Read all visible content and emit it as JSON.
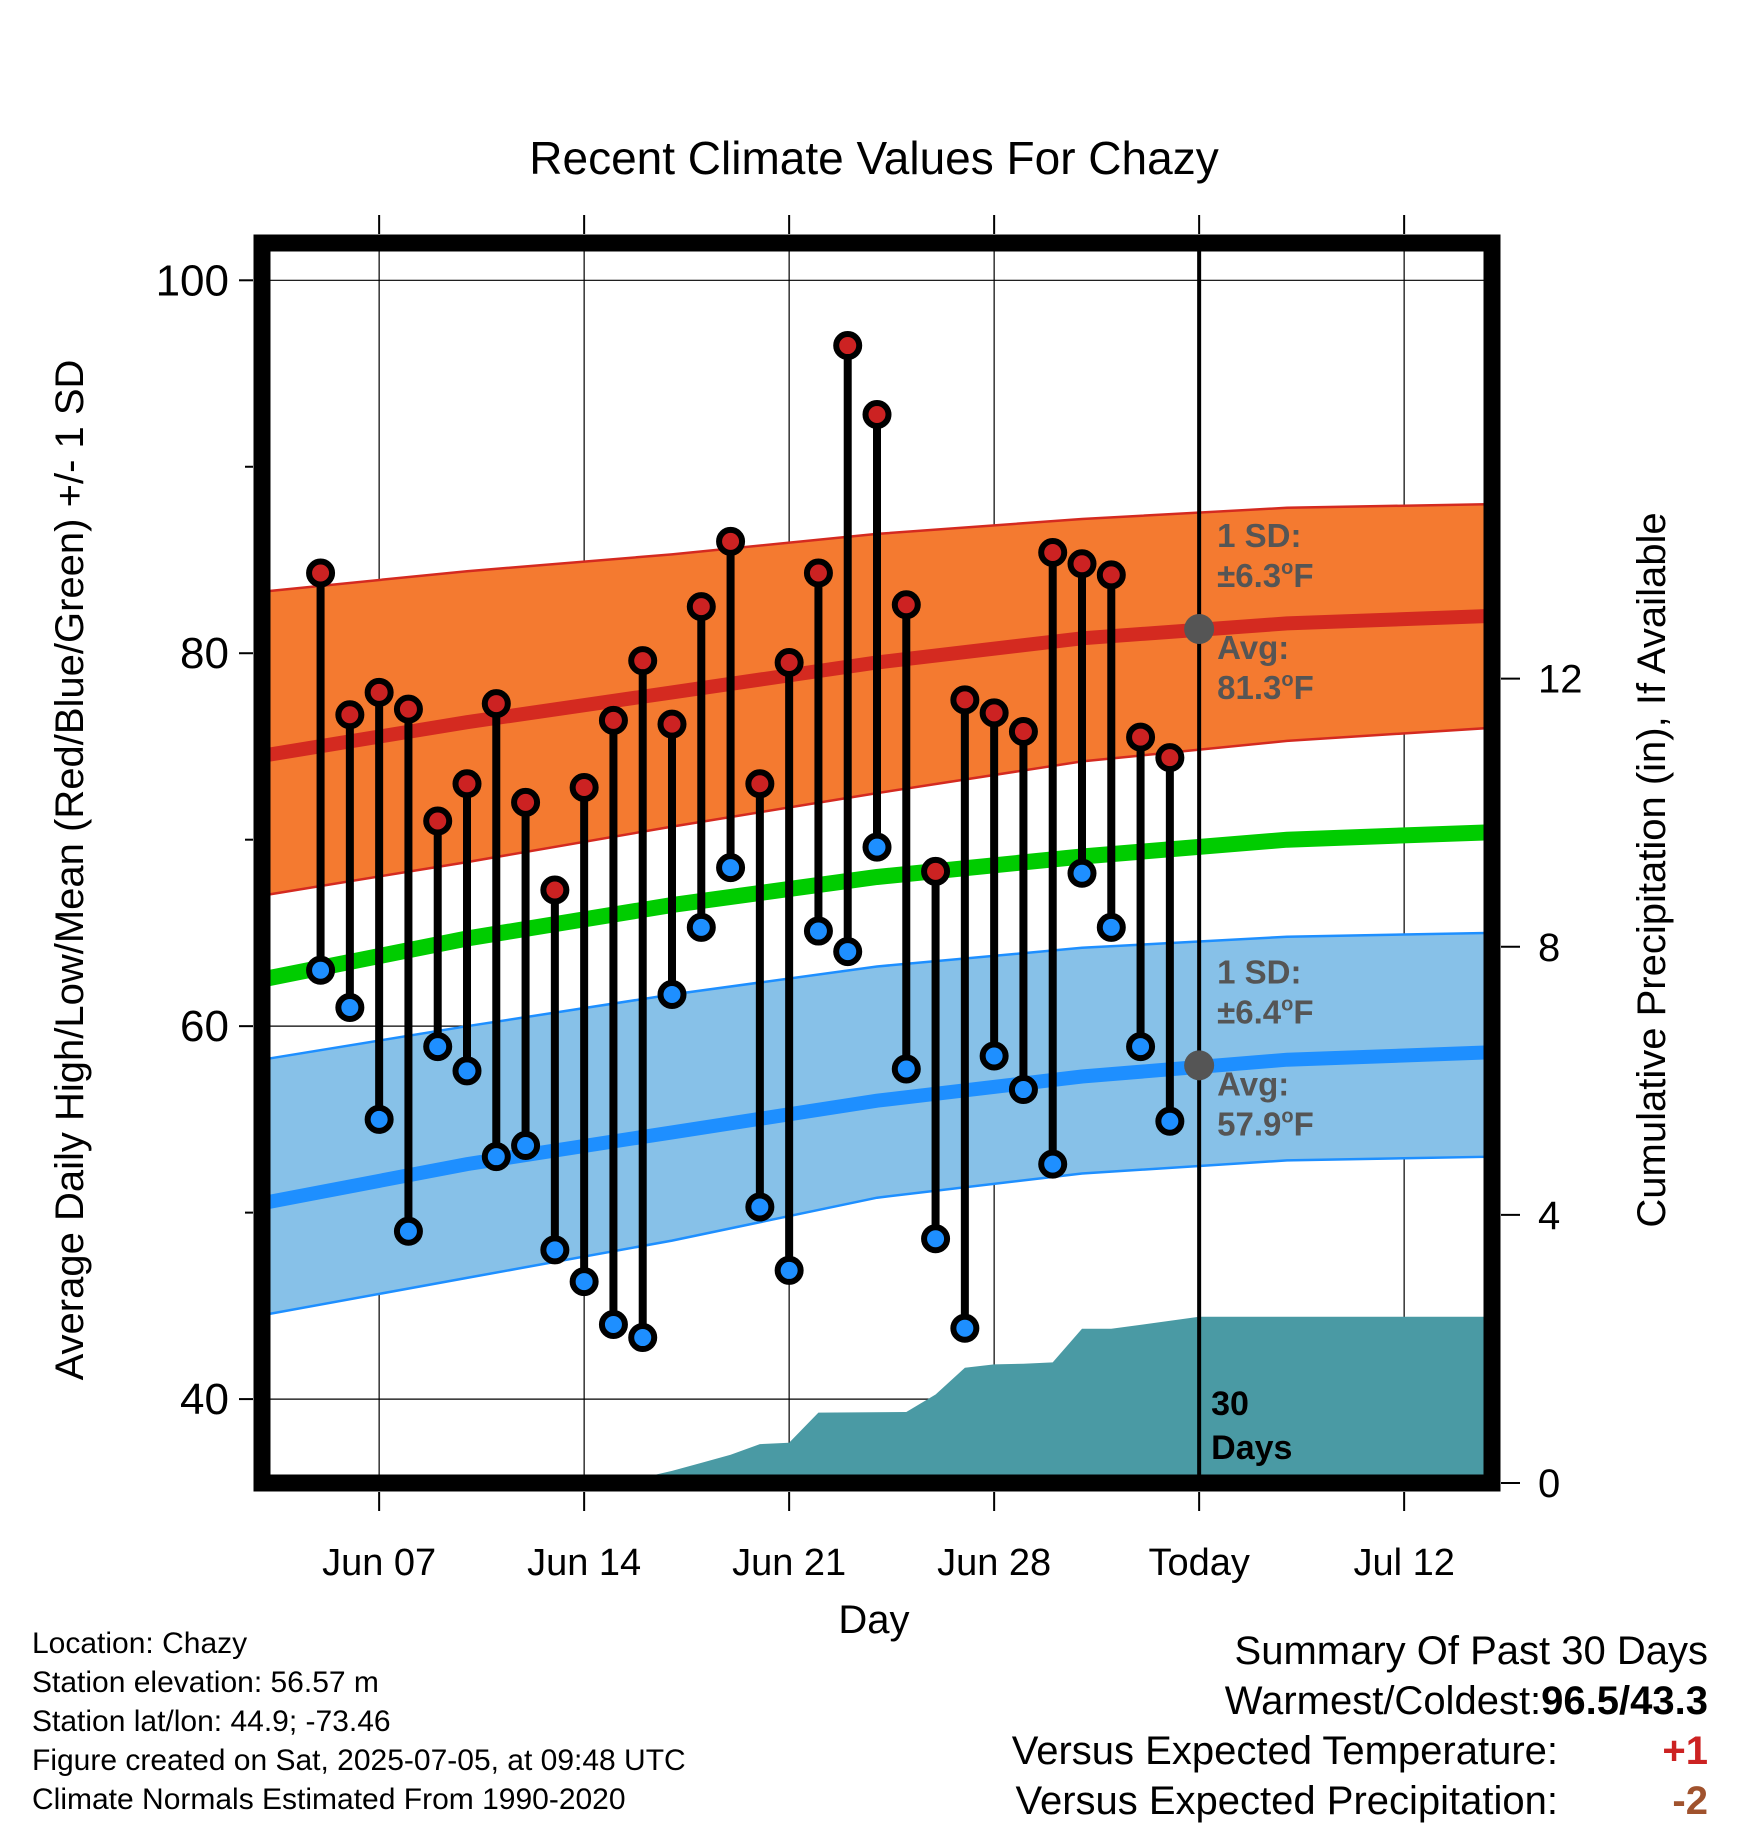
{
  "chart_data": {
    "type": "scatter",
    "title": "Recent Climate Values For Chazy",
    "xlabel": "Day",
    "ylabel": "Average Daily High/Low/Mean (Red/Blue/Green) +/- 1 SD",
    "y2label": "Cumulative Precipitation (in), If Available",
    "ylim": [
      35.5,
      102
    ],
    "y2lim": [
      0,
      18.5
    ],
    "yticks": [
      "100",
      "80",
      "60",
      "40"
    ],
    "y2ticks": [
      "12",
      "8",
      "4",
      "0"
    ],
    "xlim": [
      "Jun 03",
      "Jul 15"
    ],
    "xticks": [
      "Jun 07",
      "Jun 14",
      "Jun 21",
      "Jun 28",
      "Today",
      "Jul 12"
    ],
    "today": "Jul 05",
    "grid": true,
    "days": [
      "Jun 05",
      "Jun 06",
      "Jun 07",
      "Jun 08",
      "Jun 09",
      "Jun 10",
      "Jun 11",
      "Jun 12",
      "Jun 13",
      "Jun 14",
      "Jun 15",
      "Jun 16",
      "Jun 17",
      "Jun 18",
      "Jun 19",
      "Jun 20",
      "Jun 21",
      "Jun 22",
      "Jun 23",
      "Jun 24",
      "Jun 25",
      "Jun 26",
      "Jun 27",
      "Jun 28",
      "Jun 29",
      "Jun 30",
      "Jul 01",
      "Jul 02",
      "Jul 03",
      "Jul 04"
    ],
    "series": [
      {
        "name": "High",
        "color": "#cc2222",
        "values": [
          84.3,
          76.7,
          77.9,
          77.0,
          71.0,
          73.0,
          77.3,
          72.0,
          67.3,
          72.8,
          76.4,
          79.6,
          76.2,
          82.5,
          86.0,
          73.0,
          79.5,
          84.3,
          96.5,
          92.8,
          82.6,
          68.3,
          77.5,
          76.8,
          75.8,
          85.4,
          84.8,
          84.2,
          75.5,
          74.4
        ]
      },
      {
        "name": "Low",
        "color": "#1e8fff",
        "values": [
          63.0,
          61.0,
          55.0,
          49.0,
          58.9,
          57.6,
          53.0,
          53.6,
          48.0,
          46.3,
          44.0,
          43.3,
          61.7,
          65.3,
          68.5,
          50.3,
          46.9,
          65.1,
          64.0,
          69.6,
          57.7,
          48.6,
          43.8,
          58.4,
          56.6,
          52.6,
          68.2,
          65.3,
          58.9,
          54.9
        ]
      }
    ],
    "normals": {
      "days": [
        "Jun 03",
        "Jun 10",
        "Jun 17",
        "Jun 24",
        "Jul 01",
        "Jul 08",
        "Jul 15"
      ],
      "high_avg": [
        74.5,
        76.3,
        77.9,
        79.5,
        80.8,
        81.6,
        82.0
      ],
      "high_sd_upper": [
        83.3,
        84.4,
        85.3,
        86.4,
        87.2,
        87.8,
        88.0
      ],
      "high_sd_lower": [
        67.0,
        68.8,
        70.7,
        72.5,
        74.2,
        75.3,
        76.0
      ],
      "mean": [
        62.5,
        64.7,
        66.5,
        68.0,
        69.1,
        70.0,
        70.4
      ],
      "low_avg": [
        50.5,
        52.6,
        54.3,
        56.0,
        57.3,
        58.2,
        58.6
      ],
      "low_sd_upper": [
        58.2,
        60.0,
        61.7,
        63.2,
        64.2,
        64.8,
        65.0
      ],
      "low_sd_lower": [
        44.5,
        46.5,
        48.5,
        50.8,
        52.1,
        52.8,
        53.0
      ]
    },
    "precip_cumulative": {
      "x": [
        "Jun 03",
        "Jun 08",
        "Jun 09",
        "Jun 10",
        "Jun 16",
        "Jun 17",
        "Jun 18",
        "Jun 19",
        "Jun 20",
        "Jun 21",
        "Jun 22",
        "Jun 25",
        "Jun 26",
        "Jun 27",
        "Jun 28",
        "Jun 29",
        "Jun 30",
        "Jul 01",
        "Jul 02",
        "Jul 05",
        "Jul 15"
      ],
      "y": [
        0,
        0,
        0,
        0.08,
        0.08,
        0.18,
        0.3,
        0.42,
        0.58,
        0.6,
        1.05,
        1.06,
        1.32,
        1.72,
        1.77,
        1.78,
        1.8,
        2.3,
        2.3,
        2.48,
        2.48
      ]
    },
    "annotations": {
      "high": {
        "sd_line1": "1 SD:",
        "sd_line2": "±6.3",
        "sd_unit": "F",
        "avg_line1": "Avg:",
        "avg_line2": "81.3",
        "avg_unit": "F",
        "avg_value": 81.3
      },
      "low": {
        "sd_line1": "1 SD:",
        "sd_line2": "±6.4",
        "sd_unit": "F",
        "avg_line1": "Avg:",
        "avg_line2": "57.9",
        "avg_unit": "F",
        "avg_value": 57.9
      },
      "degree_symbol": "o",
      "precip_days_line1": "30",
      "precip_days_line2": "Days"
    },
    "colors": {
      "high_band": "#f47a30",
      "high_line": "#d42a20",
      "mean_line": "#00cc00",
      "low_band": "#87c1e8",
      "low_line": "#1e8fff",
      "precip": "#4a9aa4",
      "avg_marker": "#555555",
      "annotation_text": "#555555"
    }
  },
  "footer": {
    "location": "Location: Chazy",
    "elevation": "Station elevation: 56.57 m",
    "latlon": "Station lat/lon: 44.9; -73.46",
    "created": "Figure created on Sat, 2025-07-05, at 09:48 UTC",
    "normals": "Climate Normals Estimated From 1990-2020"
  },
  "summary": {
    "title": "Summary Of Past 30 Days",
    "warmest_label": "Warmest/Coldest:",
    "warmest_value": "96.5/43.3",
    "temp_label": "Versus Expected Temperature:",
    "temp_value": "+1",
    "temp_color": "#cc2222",
    "precip_label": "Versus Expected Precipitation:",
    "precip_value": "-2",
    "precip_color": "#a0522d"
  }
}
